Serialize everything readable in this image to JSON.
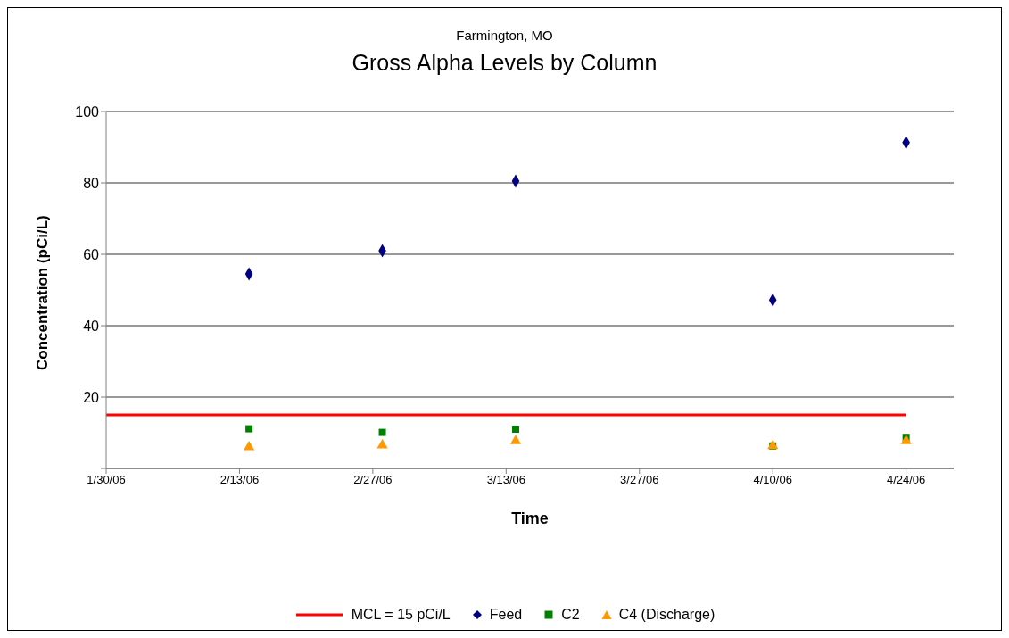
{
  "chart_data": {
    "type": "scatter",
    "subtitle": "Farmington, MO",
    "title": "Gross Alpha Levels by Column",
    "xlabel": "Time",
    "ylabel": "Concentration (pCi/L)",
    "xlim": [
      "2006-01-30",
      "2006-04-29"
    ],
    "xticks": [
      {
        "value": "2006-01-30",
        "label": "1/30/06"
      },
      {
        "value": "2006-02-13",
        "label": "2/13/06"
      },
      {
        "value": "2006-02-27",
        "label": "2/27/06"
      },
      {
        "value": "2006-03-13",
        "label": "3/13/06"
      },
      {
        "value": "2006-03-27",
        "label": "3/27/06"
      },
      {
        "value": "2006-04-10",
        "label": "4/10/06"
      },
      {
        "value": "2006-04-24",
        "label": "4/24/06"
      }
    ],
    "ylim": [
      0,
      100
    ],
    "yticks": [
      {
        "value": 0,
        "label": null
      },
      20,
      40,
      60,
      80,
      100
    ],
    "grid": "y",
    "legend": "bottom",
    "series": [
      {
        "name": "MCL = 15 pCi/L",
        "type": "line",
        "marker": "none",
        "color": "#ff0000",
        "x": [
          "2006-01-30",
          "2006-04-24"
        ],
        "values": [
          15,
          15
        ]
      },
      {
        "name": "Feed",
        "marker": "diamond",
        "color": "#000080",
        "x": [
          "2006-02-14",
          "2006-02-28",
          "2006-03-14",
          "2006-04-10",
          "2006-04-24"
        ],
        "values": [
          54.5,
          61,
          80.5,
          47.2,
          91.3
        ]
      },
      {
        "name": "C2",
        "marker": "square",
        "color": "#008000",
        "x": [
          "2006-02-14",
          "2006-02-28",
          "2006-03-14",
          "2006-04-10",
          "2006-04-24"
        ],
        "values": [
          11.1,
          10.1,
          11,
          6.3,
          8.7
        ]
      },
      {
        "name": "C4 (Discharge)",
        "marker": "triangle",
        "color": "#ff9900",
        "x": [
          "2006-02-14",
          "2006-02-28",
          "2006-03-14",
          "2006-04-10",
          "2006-04-24"
        ],
        "values": [
          6,
          6.5,
          7.7,
          6.3,
          7.7
        ]
      }
    ]
  }
}
